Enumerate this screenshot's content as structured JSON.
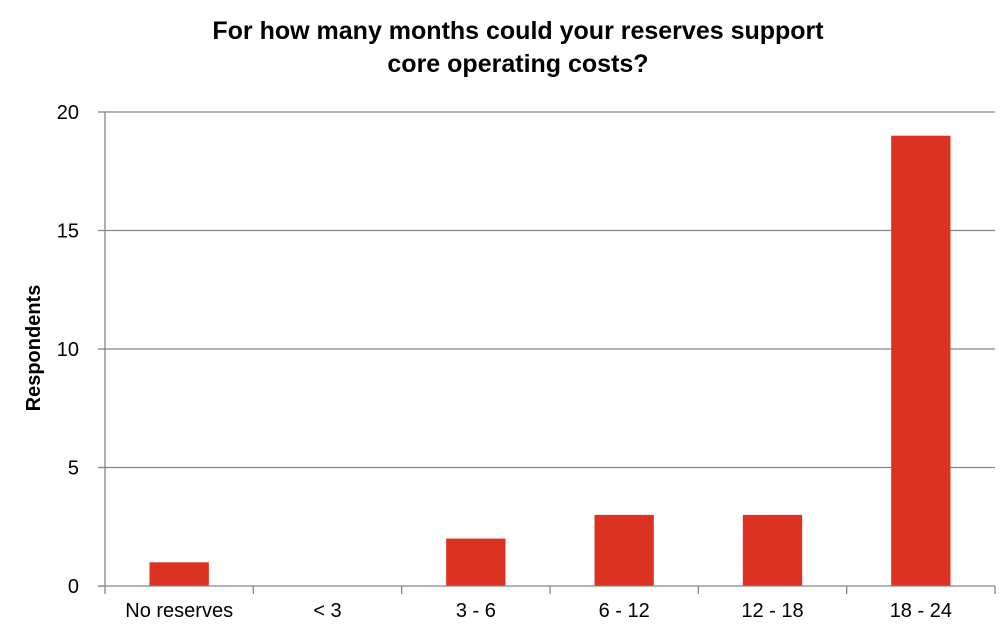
{
  "chart_data": {
    "type": "bar",
    "title_lines": [
      "For how many months could your reserves support",
      "core operating costs?"
    ],
    "xlabel": "",
    "ylabel": "Respondents",
    "categories": [
      "No reserves",
      "< 3",
      "3 - 6",
      "6 - 12",
      "12 - 18",
      "18 - 24"
    ],
    "values": [
      1,
      0,
      2,
      3,
      3,
      19
    ],
    "ylim": [
      0,
      20
    ],
    "yticks": [
      0,
      5,
      10,
      15,
      20
    ],
    "grid": true,
    "bar_color": "#DC3222",
    "gridline_color": "#868686",
    "axis_color": "#868686"
  }
}
